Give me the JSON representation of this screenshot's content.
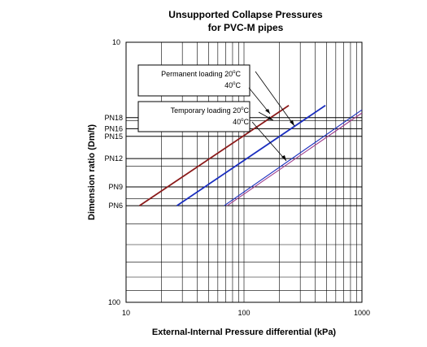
{
  "chart_data": {
    "type": "line",
    "title": [
      "Unsupported Collapse Pressures",
      "for PVC-M pipes"
    ],
    "xlabel": "External-Internal Pressure differential (kPa)",
    "ylabel": "Dimension ratio (Dm/t)",
    "x_scale": "log",
    "y_scale": "log",
    "y_inverted": true,
    "xlim": [
      10,
      1000
    ],
    "ylim": [
      10,
      100
    ],
    "x_ticks": [
      "10",
      "100",
      "1000"
    ],
    "y_ticks": [
      "10",
      "100"
    ],
    "grid": true,
    "pn_levels": [
      {
        "label": "PN18",
        "dr": 19.5
      },
      {
        "label": "PN16",
        "dr": 21.5
      },
      {
        "label": "PN15",
        "dr": 23.0
      },
      {
        "label": "PN12",
        "dr": 28.0
      },
      {
        "label": "PN9",
        "dr": 36.0
      },
      {
        "label": "PN6",
        "dr": 42.5
      }
    ],
    "legend_groups": [
      {
        "label": "Permanent loading 20",
        "sup": "o",
        "unit": "C"
      },
      {
        "label": "40",
        "sup": "o",
        "unit": "C"
      },
      {
        "label": "Temporary loading 20",
        "sup": "o",
        "unit": "C"
      },
      {
        "label": "40",
        "sup": "o",
        "unit": "C"
      }
    ],
    "series": [
      {
        "color": "#8b1a1a",
        "x": [
          13,
          240
        ],
        "y": [
          42.5,
          17.5
        ]
      },
      {
        "color": "#1a2ebf",
        "x": [
          27,
          490
        ],
        "y": [
          42.5,
          17.5
        ]
      },
      {
        "color": "#1a2ebf",
        "x": [
          68,
          1000
        ],
        "y": [
          42.5,
          18.2
        ]
      },
      {
        "color": "#9c3a8a",
        "x": [
          72,
          1000
        ],
        "y": [
          42.5,
          18.7
        ]
      }
    ]
  }
}
